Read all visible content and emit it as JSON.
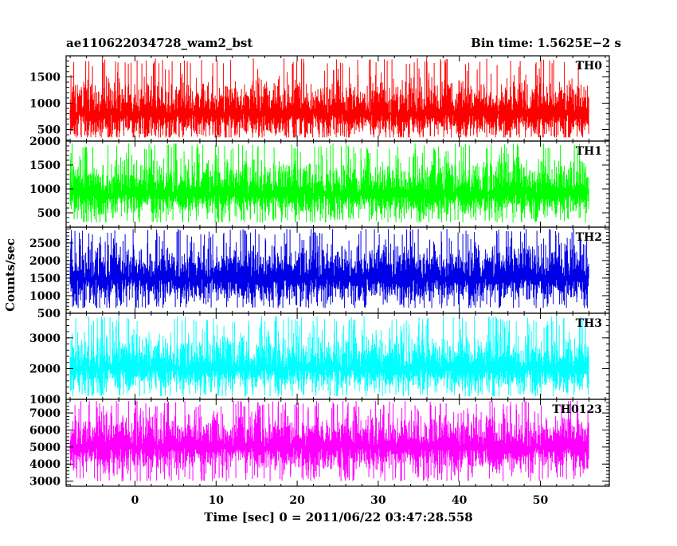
{
  "header": {
    "left": "ae110622034728_wam2_bst",
    "right": "Bin time: 1.5625E−2 s"
  },
  "chart_data": {
    "type": "line",
    "title": "ae110622034728_wam2_bst",
    "subtitle": "Bin time: 1.5625E−2 s",
    "xlabel": "Time [sec] 0 = 2011/06/22 03:47:28.558",
    "ylabel": "Counts/sec",
    "xlim": [
      -8.5,
      58.5
    ],
    "xticks": [
      0,
      10,
      20,
      30,
      40,
      50
    ],
    "data_x_range": [
      -8,
      56
    ],
    "bin_time_s": 0.015625,
    "grid": false,
    "legend": "none",
    "panels": [
      {
        "name": "TH0",
        "color": "#ff0000",
        "ylim": [
          280,
          1900
        ],
        "yticks": [
          500,
          1000,
          1500
        ],
        "signal": {
          "mean": 800,
          "min_envelope": 350,
          "max_envelope": 1850
        }
      },
      {
        "name": "TH1",
        "color": "#00ff00",
        "ylim": [
          200,
          2000
        ],
        "yticks": [
          500,
          1000,
          1500,
          2000
        ],
        "signal": {
          "mean": 900,
          "min_envelope": 300,
          "max_envelope": 1950
        }
      },
      {
        "name": "TH2",
        "color": "#0000e6",
        "ylim": [
          500,
          2950
        ],
        "yticks": [
          500,
          1000,
          1500,
          2000,
          2500
        ],
        "signal": {
          "mean": 1500,
          "min_envelope": 650,
          "max_envelope": 2900
        }
      },
      {
        "name": "TH3",
        "color": "#00ffff",
        "ylim": [
          1000,
          3800
        ],
        "yticks": [
          1000,
          2000,
          3000
        ],
        "signal": {
          "mean": 2000,
          "min_envelope": 1100,
          "max_envelope": 3700
        }
      },
      {
        "name": "TH0123",
        "color": "#ff00ff",
        "ylim": [
          2700,
          7800
        ],
        "yticks": [
          3000,
          4000,
          5000,
          6000,
          7000
        ],
        "signal": {
          "mean": 5000,
          "min_envelope": 3000,
          "max_envelope": 7700
        }
      }
    ]
  }
}
